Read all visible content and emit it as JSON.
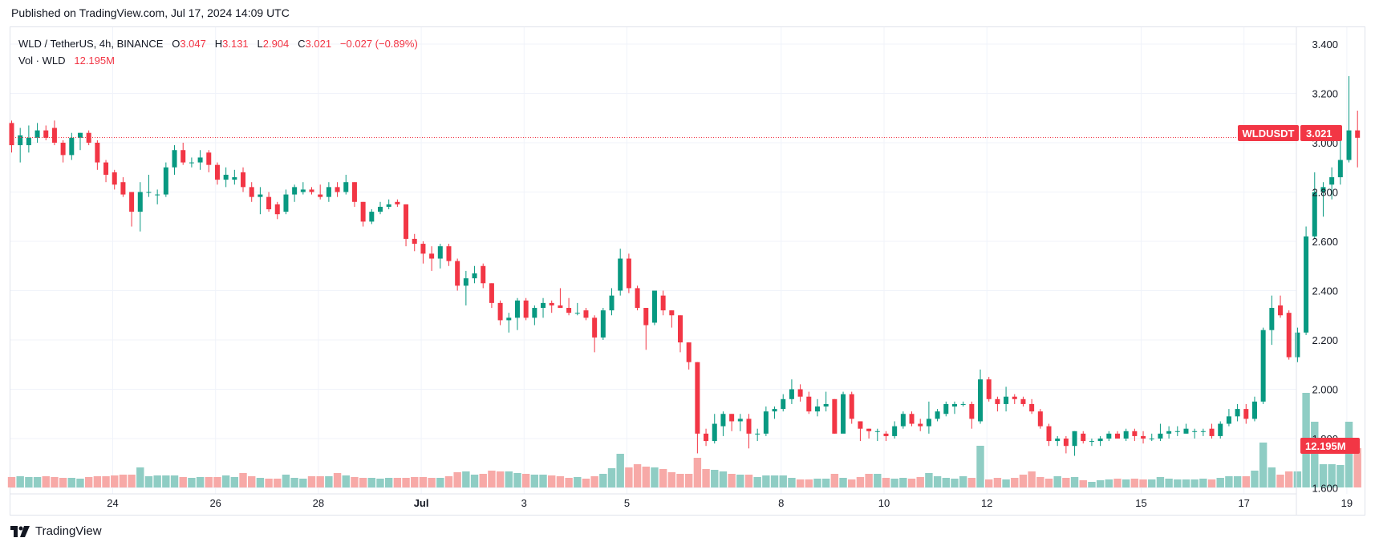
{
  "header": {
    "published": "Published on TradingView.com, Jul 17, 2024 14:09 UTC"
  },
  "legend": {
    "symbol": "WLD / TetherUS, 4h, BINANCE",
    "o_label": "O",
    "o_value": "3.047",
    "h_label": "H",
    "h_value": "3.131",
    "l_label": "L",
    "l_value": "2.904",
    "c_label": "C",
    "c_value": "3.021",
    "change": "−0.027 (−0.89%)",
    "vol_label": "Vol · WLD",
    "vol_value": "12.195M"
  },
  "badges": {
    "symbol": "WLDUSDT",
    "last_price": "3.021",
    "last_volume": "12.195M"
  },
  "footer": {
    "brand": "TradingView"
  },
  "colors": {
    "up": "#089981",
    "down": "#f23645",
    "up_vol": "#8fcdc4",
    "down_vol": "#f7a9a7",
    "grid": "#f0f3fa",
    "text": "#131722"
  },
  "chart_data": {
    "type": "candlestick",
    "symbol": "WLD / TetherUS",
    "timeframe": "4h",
    "exchange": "BINANCE",
    "y_ticks": [
      "3.400",
      "3.200",
      "3.000",
      "2.800",
      "2.600",
      "2.400",
      "2.200",
      "2.000",
      "1.800",
      "1.600"
    ],
    "ylim": [
      1.56,
      3.42
    ],
    "x_ticks": [
      {
        "label": "24",
        "x": 24
      },
      {
        "label": "26",
        "x": 26
      },
      {
        "label": "28",
        "x": 28
      },
      {
        "label": "Jul",
        "x": 30
      },
      {
        "label": "3",
        "x": 32
      },
      {
        "label": "5",
        "x": 34
      },
      {
        "label": "8",
        "x": 37
      },
      {
        "label": "10",
        "x": 39
      },
      {
        "label": "12",
        "x": 41
      },
      {
        "label": "15",
        "x": 44
      },
      {
        "label": "17",
        "x": 46
      },
      {
        "label": "19",
        "x": 48
      }
    ],
    "x_range": [
      21.9,
      48.0
    ],
    "last_close": 3.021,
    "candles_ohlcv": [
      [
        3.08,
        3.09,
        2.96,
        2.99,
        0.13
      ],
      [
        2.99,
        3.06,
        2.92,
        3.03,
        0.14
      ],
      [
        2.99,
        3.07,
        2.96,
        3.02,
        0.13
      ],
      [
        3.02,
        3.08,
        3.0,
        3.05,
        0.13
      ],
      [
        3.05,
        3.07,
        3.01,
        3.02,
        0.14
      ],
      [
        3.06,
        3.09,
        2.99,
        3.0,
        0.13
      ],
      [
        3.0,
        3.01,
        2.92,
        2.95,
        0.12
      ],
      [
        2.95,
        3.04,
        2.93,
        3.02,
        0.12
      ],
      [
        3.02,
        3.04,
        2.97,
        3.04,
        0.11
      ],
      [
        3.04,
        3.05,
        2.99,
        3.0,
        0.13
      ],
      [
        3.0,
        3.01,
        2.89,
        2.92,
        0.14
      ],
      [
        2.92,
        2.93,
        2.84,
        2.87,
        0.14
      ],
      [
        2.88,
        2.89,
        2.81,
        2.83,
        0.15
      ],
      [
        2.84,
        2.86,
        2.78,
        2.79,
        0.16
      ],
      [
        2.8,
        2.8,
        2.66,
        2.72,
        0.16
      ],
      [
        2.72,
        2.84,
        2.64,
        2.8,
        0.25
      ],
      [
        2.8,
        2.87,
        2.78,
        2.8,
        0.14
      ],
      [
        2.79,
        2.81,
        2.75,
        2.79,
        0.15
      ],
      [
        2.79,
        2.92,
        2.78,
        2.9,
        0.15
      ],
      [
        2.9,
        2.99,
        2.87,
        2.97,
        0.15
      ],
      [
        2.97,
        3.0,
        2.91,
        2.92,
        0.13
      ],
      [
        2.92,
        2.94,
        2.9,
        2.92,
        0.12
      ],
      [
        2.92,
        2.97,
        2.89,
        2.94,
        0.13
      ],
      [
        2.96,
        2.97,
        2.88,
        2.91,
        0.13
      ],
      [
        2.91,
        2.92,
        2.83,
        2.85,
        0.13
      ],
      [
        2.85,
        2.9,
        2.82,
        2.87,
        0.15
      ],
      [
        2.85,
        2.89,
        2.83,
        2.86,
        0.13
      ],
      [
        2.88,
        2.9,
        2.8,
        2.82,
        0.18
      ],
      [
        2.82,
        2.84,
        2.76,
        2.78,
        0.14
      ],
      [
        2.78,
        2.82,
        2.71,
        2.79,
        0.12
      ],
      [
        2.78,
        2.8,
        2.72,
        2.73,
        0.11
      ],
      [
        2.75,
        2.76,
        2.69,
        2.71,
        0.11
      ],
      [
        2.72,
        2.81,
        2.71,
        2.79,
        0.16
      ],
      [
        2.79,
        2.83,
        2.76,
        2.82,
        0.12
      ],
      [
        2.8,
        2.84,
        2.79,
        2.81,
        0.11
      ],
      [
        2.81,
        2.82,
        2.79,
        2.8,
        0.14
      ],
      [
        2.79,
        2.83,
        2.77,
        2.78,
        0.14
      ],
      [
        2.78,
        2.84,
        2.76,
        2.82,
        0.14
      ],
      [
        2.82,
        2.84,
        2.78,
        2.8,
        0.18
      ],
      [
        2.8,
        2.87,
        2.79,
        2.84,
        0.15
      ],
      [
        2.84,
        2.84,
        2.74,
        2.76,
        0.13
      ],
      [
        2.76,
        2.76,
        2.66,
        2.68,
        0.12
      ],
      [
        2.68,
        2.73,
        2.67,
        2.72,
        0.12
      ],
      [
        2.72,
        2.76,
        2.71,
        2.74,
        0.11
      ],
      [
        2.74,
        2.77,
        2.73,
        2.75,
        0.12
      ],
      [
        2.76,
        2.77,
        2.74,
        2.75,
        0.12
      ],
      [
        2.75,
        2.75,
        2.58,
        2.61,
        0.12
      ],
      [
        2.61,
        2.63,
        2.56,
        2.59,
        0.13
      ],
      [
        2.59,
        2.6,
        2.51,
        2.55,
        0.13
      ],
      [
        2.55,
        2.58,
        2.48,
        2.53,
        0.12
      ],
      [
        2.53,
        2.59,
        2.49,
        2.58,
        0.12
      ],
      [
        2.58,
        2.59,
        2.5,
        2.52,
        0.14
      ],
      [
        2.52,
        2.53,
        2.4,
        2.42,
        0.19
      ],
      [
        2.42,
        2.48,
        2.34,
        2.45,
        0.2
      ],
      [
        2.45,
        2.5,
        2.43,
        2.47,
        0.16
      ],
      [
        2.5,
        2.51,
        2.41,
        2.43,
        0.17
      ],
      [
        2.43,
        2.43,
        2.33,
        2.35,
        0.21
      ],
      [
        2.35,
        2.36,
        2.26,
        2.28,
        0.2
      ],
      [
        2.28,
        2.31,
        2.23,
        2.29,
        0.2
      ],
      [
        2.29,
        2.37,
        2.24,
        2.36,
        0.18
      ],
      [
        2.36,
        2.37,
        2.28,
        2.29,
        0.17
      ],
      [
        2.29,
        2.34,
        2.26,
        2.33,
        0.16
      ],
      [
        2.33,
        2.37,
        2.29,
        2.35,
        0.16
      ],
      [
        2.35,
        2.36,
        2.31,
        2.34,
        0.15
      ],
      [
        2.34,
        2.41,
        2.33,
        2.33,
        0.14
      ],
      [
        2.33,
        2.37,
        2.3,
        2.31,
        0.12
      ],
      [
        2.31,
        2.35,
        2.3,
        2.31,
        0.13
      ],
      [
        2.32,
        2.33,
        2.28,
        2.29,
        0.11
      ],
      [
        2.29,
        2.3,
        2.15,
        2.21,
        0.14
      ],
      [
        2.21,
        2.33,
        2.2,
        2.32,
        0.17
      ],
      [
        2.32,
        2.41,
        2.3,
        2.38,
        0.24
      ],
      [
        2.4,
        2.57,
        2.38,
        2.53,
        0.42
      ],
      [
        2.53,
        2.55,
        2.39,
        2.41,
        0.25
      ],
      [
        2.41,
        2.42,
        2.32,
        2.33,
        0.29
      ],
      [
        2.33,
        2.33,
        2.16,
        2.26,
        0.26
      ],
      [
        2.27,
        2.4,
        2.26,
        2.4,
        0.25
      ],
      [
        2.38,
        2.4,
        2.3,
        2.32,
        0.23
      ],
      [
        2.32,
        2.32,
        2.25,
        2.3,
        0.19
      ],
      [
        2.3,
        2.3,
        2.15,
        2.19,
        0.17
      ],
      [
        2.19,
        2.19,
        2.08,
        2.11,
        0.17
      ],
      [
        2.11,
        2.11,
        1.74,
        1.82,
        0.37
      ],
      [
        1.82,
        1.84,
        1.77,
        1.79,
        0.23
      ],
      [
        1.79,
        1.9,
        1.78,
        1.86,
        0.22
      ],
      [
        1.85,
        1.91,
        1.81,
        1.9,
        0.2
      ],
      [
        1.9,
        1.9,
        1.83,
        1.87,
        0.17
      ],
      [
        1.87,
        1.9,
        1.83,
        1.88,
        0.16
      ],
      [
        1.88,
        1.9,
        1.76,
        1.82,
        0.16
      ],
      [
        1.82,
        1.84,
        1.79,
        1.82,
        0.13
      ],
      [
        1.82,
        1.93,
        1.81,
        1.91,
        0.15
      ],
      [
        1.91,
        1.93,
        1.88,
        1.92,
        0.15
      ],
      [
        1.92,
        1.98,
        1.91,
        1.96,
        0.15
      ],
      [
        1.96,
        2.04,
        1.94,
        2.0,
        0.12
      ],
      [
        2.0,
        2.02,
        1.95,
        1.97,
        0.1
      ],
      [
        1.97,
        1.99,
        1.9,
        1.91,
        0.1
      ],
      [
        1.91,
        1.96,
        1.89,
        1.93,
        0.11
      ],
      [
        1.93,
        1.99,
        1.91,
        1.94,
        0.11
      ],
      [
        1.96,
        1.96,
        1.82,
        1.82,
        0.17
      ],
      [
        1.82,
        1.99,
        1.83,
        1.98,
        0.12
      ],
      [
        1.98,
        1.99,
        1.86,
        1.88,
        0.1
      ],
      [
        1.87,
        1.87,
        1.79,
        1.84,
        0.13
      ],
      [
        1.84,
        1.84,
        1.8,
        1.83,
        0.17
      ],
      [
        1.83,
        1.84,
        1.79,
        1.83,
        0.17
      ],
      [
        1.82,
        1.83,
        1.79,
        1.81,
        0.12
      ],
      [
        1.81,
        1.87,
        1.8,
        1.85,
        0.11
      ],
      [
        1.85,
        1.91,
        1.84,
        1.9,
        0.12
      ],
      [
        1.9,
        1.91,
        1.85,
        1.86,
        0.11
      ],
      [
        1.86,
        1.88,
        1.83,
        1.85,
        0.13
      ],
      [
        1.85,
        1.95,
        1.82,
        1.88,
        0.18
      ],
      [
        1.88,
        1.92,
        1.87,
        1.91,
        0.14
      ],
      [
        1.9,
        1.95,
        1.89,
        1.94,
        0.12
      ],
      [
        1.93,
        1.95,
        1.9,
        1.94,
        0.11
      ],
      [
        1.94,
        1.95,
        1.93,
        1.94,
        0.14
      ],
      [
        1.94,
        1.95,
        1.84,
        1.88,
        0.12
      ],
      [
        1.87,
        2.08,
        1.86,
        2.04,
        0.52
      ],
      [
        2.04,
        2.05,
        1.95,
        1.96,
        0.1
      ],
      [
        1.96,
        1.97,
        1.91,
        1.94,
        0.12
      ],
      [
        1.94,
        2.01,
        1.91,
        1.97,
        0.1
      ],
      [
        1.97,
        1.98,
        1.94,
        1.96,
        0.12
      ],
      [
        1.96,
        1.97,
        1.93,
        1.94,
        0.16
      ],
      [
        1.94,
        1.96,
        1.9,
        1.91,
        0.2
      ],
      [
        1.91,
        1.92,
        1.84,
        1.85,
        0.13
      ],
      [
        1.85,
        1.86,
        1.77,
        1.79,
        0.11
      ],
      [
        1.79,
        1.81,
        1.77,
        1.8,
        0.14
      ],
      [
        1.8,
        1.81,
        1.74,
        1.77,
        0.12
      ],
      [
        1.77,
        1.83,
        1.73,
        1.83,
        0.13
      ],
      [
        1.82,
        1.83,
        1.78,
        1.79,
        0.09
      ],
      [
        1.79,
        1.8,
        1.77,
        1.79,
        0.07
      ],
      [
        1.79,
        1.81,
        1.77,
        1.8,
        0.09
      ],
      [
        1.8,
        1.83,
        1.79,
        1.82,
        0.1
      ],
      [
        1.82,
        1.83,
        1.8,
        1.8,
        0.11
      ],
      [
        1.8,
        1.84,
        1.79,
        1.83,
        0.1
      ],
      [
        1.83,
        1.84,
        1.79,
        1.81,
        0.11
      ],
      [
        1.81,
        1.83,
        1.78,
        1.8,
        0.1
      ],
      [
        1.8,
        1.82,
        1.79,
        1.8,
        0.1
      ],
      [
        1.8,
        1.86,
        1.79,
        1.82,
        0.13
      ],
      [
        1.82,
        1.85,
        1.8,
        1.83,
        0.11
      ],
      [
        1.83,
        1.85,
        1.81,
        1.83,
        0.1
      ],
      [
        1.82,
        1.86,
        1.82,
        1.84,
        0.1
      ],
      [
        1.83,
        1.84,
        1.8,
        1.83,
        0.1
      ],
      [
        1.83,
        1.84,
        1.81,
        1.83,
        0.11
      ],
      [
        1.84,
        1.86,
        1.8,
        1.81,
        0.1
      ],
      [
        1.81,
        1.87,
        1.8,
        1.86,
        0.12
      ],
      [
        1.86,
        1.92,
        1.85,
        1.89,
        0.14
      ],
      [
        1.89,
        1.94,
        1.87,
        1.92,
        0.14
      ],
      [
        1.92,
        1.94,
        1.86,
        1.88,
        0.14
      ],
      [
        1.88,
        1.97,
        1.87,
        1.95,
        0.21
      ],
      [
        1.95,
        2.25,
        1.94,
        2.24,
        0.56
      ],
      [
        2.24,
        2.38,
        2.18,
        2.33,
        0.25
      ],
      [
        2.34,
        2.38,
        2.29,
        2.3,
        0.16
      ],
      [
        2.31,
        2.32,
        2.12,
        2.13,
        0.2
      ],
      [
        2.13,
        2.25,
        2.11,
        2.23,
        0.2
      ],
      [
        2.23,
        2.66,
        2.22,
        2.62,
        1.18
      ],
      [
        2.62,
        2.88,
        2.61,
        2.8,
        0.82
      ],
      [
        2.8,
        2.84,
        2.7,
        2.82,
        0.29
      ],
      [
        2.83,
        2.9,
        2.77,
        2.86,
        0.29
      ],
      [
        2.86,
        3.01,
        2.83,
        2.93,
        0.28
      ],
      [
        2.93,
        3.27,
        2.92,
        3.05,
        0.82
      ],
      [
        3.05,
        3.13,
        2.9,
        3.02,
        0.49
      ]
    ]
  }
}
